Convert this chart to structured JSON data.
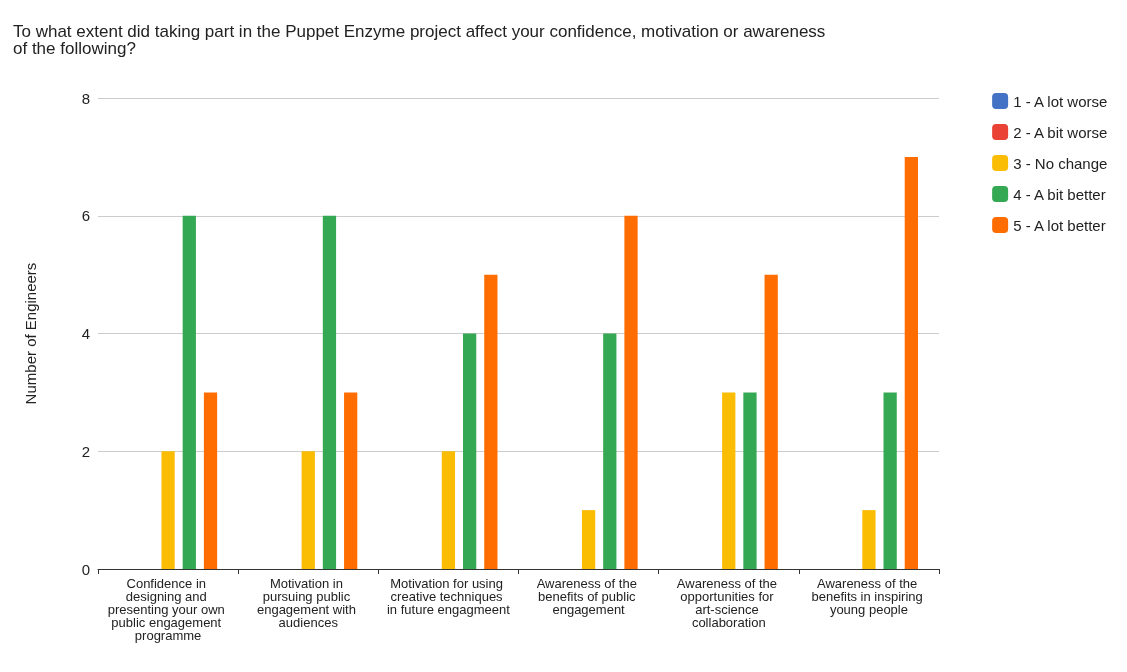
{
  "chart_data": {
    "type": "bar",
    "title": "To what extent did taking part in the Puppet Enzyme project affect your confidence, motivation or awareness of the following?",
    "ylabel": "Number of Engineers",
    "categories": [
      "Confidence in designing and presenting your own public engagement programme",
      "Motivation in pursuing public engagement with audiences",
      "Motivation for using creative techniques in future engagmeent",
      "Awareness of the benefits of public engagement",
      "Awareness of the opportunities for art-science collaboration",
      "Awareness of the benefits in inspiring young people"
    ],
    "series": [
      {
        "name": "1 - A lot worse",
        "color": "#4472c4",
        "values": [
          0,
          0,
          0,
          0,
          0,
          0
        ]
      },
      {
        "name": "2 - A bit worse",
        "color": "#ea4335",
        "values": [
          0,
          0,
          0,
          0,
          0,
          0
        ]
      },
      {
        "name": "3 - No change",
        "color": "#fbbc04",
        "values": [
          2,
          2,
          2,
          1,
          3,
          1
        ]
      },
      {
        "name": "4 - A bit better",
        "color": "#34a853",
        "values": [
          6,
          6,
          4,
          4,
          3,
          3
        ]
      },
      {
        "name": "5 - A lot better",
        "color": "#ff6d01",
        "values": [
          3,
          3,
          5,
          6,
          5,
          7
        ]
      }
    ],
    "ylim": [
      0,
      8
    ],
    "yticks": [
      0,
      2,
      4,
      6,
      8
    ],
    "grid": "y",
    "legend": "top right"
  }
}
